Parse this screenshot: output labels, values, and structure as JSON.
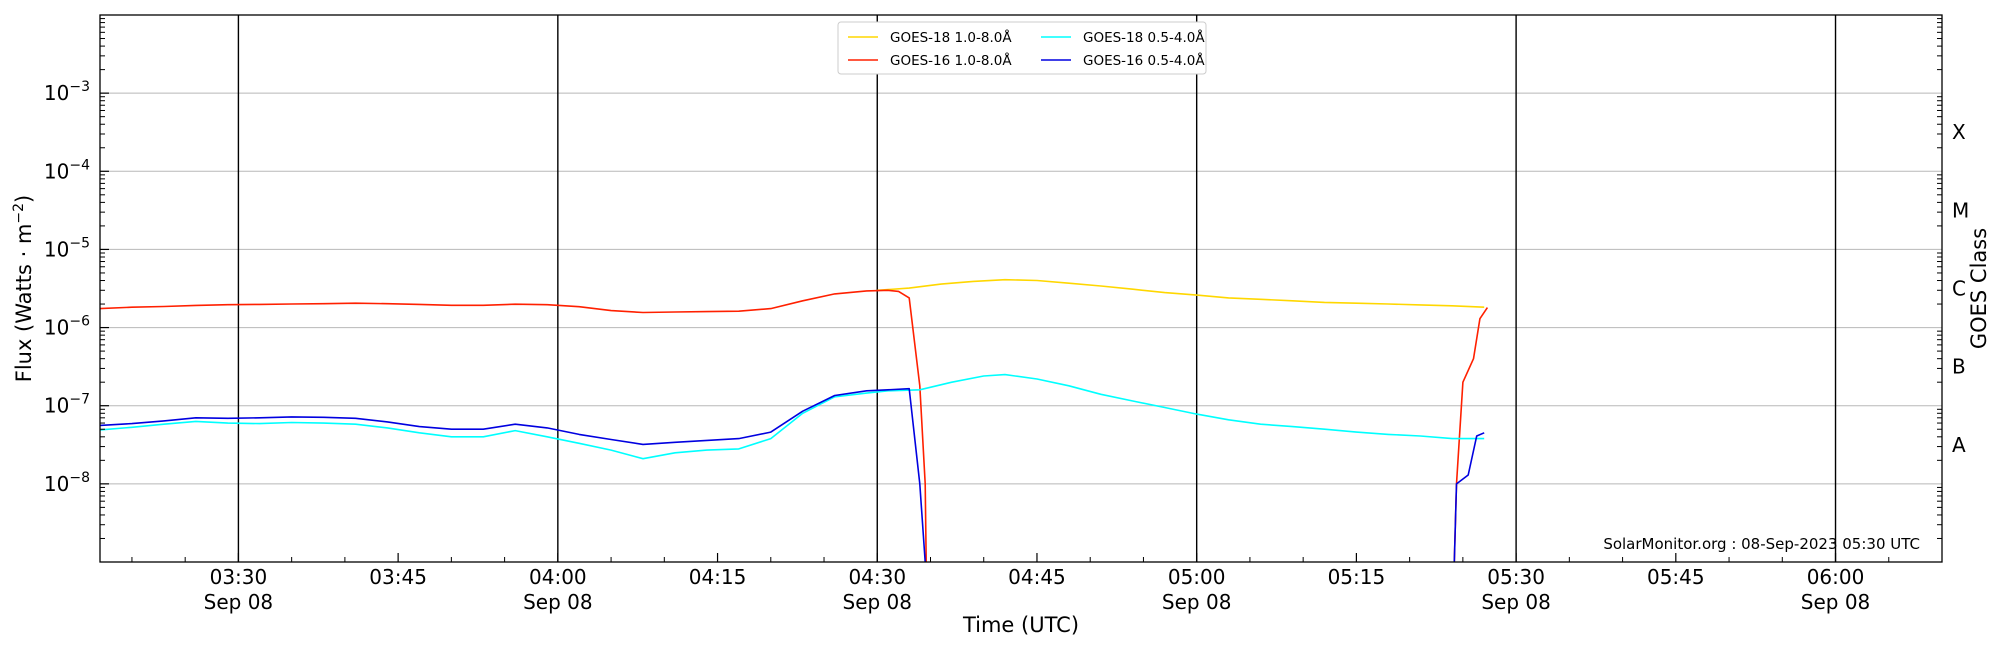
{
  "chart_data": {
    "type": "line",
    "xlabel": "Time (UTC)",
    "ylabel": "Flux (Watts · m",
    "ylabel_sup": "−2",
    "ylabel_close": ")",
    "right_axis_label": "GOES Class",
    "credit": "SolarMonitor.org : 08-Sep-2023 05:30 UTC",
    "x_range": [
      "03:17",
      "06:10"
    ],
    "y_range": [
      1e-09,
      0.01
    ],
    "y_scale": "log",
    "grid": "horizontal at decades, vertical black lines every 30 minutes",
    "legend_position": "top-center",
    "x_ticks": [
      {
        "time": "03:30",
        "label": "03:30",
        "date": "Sep 08",
        "major": true
      },
      {
        "time": "03:45",
        "label": "03:45",
        "date": "",
        "major": false
      },
      {
        "time": "04:00",
        "label": "04:00",
        "date": "Sep 08",
        "major": true
      },
      {
        "time": "04:15",
        "label": "04:15",
        "date": "",
        "major": false
      },
      {
        "time": "04:30",
        "label": "04:30",
        "date": "Sep 08",
        "major": true
      },
      {
        "time": "04:45",
        "label": "04:45",
        "date": "",
        "major": false
      },
      {
        "time": "05:00",
        "label": "05:00",
        "date": "Sep 08",
        "major": true
      },
      {
        "time": "05:15",
        "label": "05:15",
        "date": "",
        "major": false
      },
      {
        "time": "05:30",
        "label": "05:30",
        "date": "Sep 08",
        "major": true
      },
      {
        "time": "05:45",
        "label": "05:45",
        "date": "",
        "major": false
      },
      {
        "time": "06:00",
        "label": "06:00",
        "date": "Sep 08",
        "major": true
      }
    ],
    "y_ticks": [
      {
        "value": 0.001,
        "base": "10",
        "exp": "−3"
      },
      {
        "value": 0.0001,
        "base": "10",
        "exp": "−4"
      },
      {
        "value": 1e-05,
        "base": "10",
        "exp": "−5"
      },
      {
        "value": 1e-06,
        "base": "10",
        "exp": "−6"
      },
      {
        "value": 1e-07,
        "base": "10",
        "exp": "−7"
      },
      {
        "value": 1e-08,
        "base": "10",
        "exp": "−8"
      }
    ],
    "goes_classes": [
      {
        "label": "X",
        "value": 0.000316
      },
      {
        "label": "M",
        "value": 3.16e-05
      },
      {
        "label": "C",
        "value": 3.16e-06
      },
      {
        "label": "B",
        "value": 3.16e-07
      },
      {
        "label": "A",
        "value": 3.16e-08
      }
    ],
    "series": [
      {
        "name": "GOES-18 1.0-8.0Å",
        "color": "#ffd700",
        "points": [
          [
            "04:30",
            3e-06
          ],
          [
            "04:33",
            3.2e-06
          ],
          [
            "04:36",
            3.6e-06
          ],
          [
            "04:39",
            3.9e-06
          ],
          [
            "04:42",
            4.1e-06
          ],
          [
            "04:45",
            4e-06
          ],
          [
            "04:48",
            3.7e-06
          ],
          [
            "04:51",
            3.4e-06
          ],
          [
            "04:54",
            3.1e-06
          ],
          [
            "04:57",
            2.8e-06
          ],
          [
            "05:00",
            2.6e-06
          ],
          [
            "05:03",
            2.4e-06
          ],
          [
            "05:06",
            2.3e-06
          ],
          [
            "05:09",
            2.2e-06
          ],
          [
            "05:12",
            2.1e-06
          ],
          [
            "05:15",
            2.05e-06
          ],
          [
            "05:18",
            2e-06
          ],
          [
            "05:21",
            1.95e-06
          ],
          [
            "05:24",
            1.9e-06
          ],
          [
            "05:27",
            1.82e-06
          ]
        ]
      },
      {
        "name": "GOES-16 1.0-8.0Å",
        "color": "#ff2000",
        "points": [
          [
            "03:17",
            1.75e-06
          ],
          [
            "03:20",
            1.82e-06
          ],
          [
            "03:23",
            1.86e-06
          ],
          [
            "03:26",
            1.92e-06
          ],
          [
            "03:29",
            1.96e-06
          ],
          [
            "03:32",
            1.98e-06
          ],
          [
            "03:35",
            2e-06
          ],
          [
            "03:38",
            2.02e-06
          ],
          [
            "03:41",
            2.05e-06
          ],
          [
            "03:44",
            2.02e-06
          ],
          [
            "03:47",
            1.98e-06
          ],
          [
            "03:50",
            1.93e-06
          ],
          [
            "03:53",
            1.93e-06
          ],
          [
            "03:56",
            1.99e-06
          ],
          [
            "03:59",
            1.96e-06
          ],
          [
            "04:02",
            1.85e-06
          ],
          [
            "04:05",
            1.65e-06
          ],
          [
            "04:08",
            1.56e-06
          ],
          [
            "04:11",
            1.58e-06
          ],
          [
            "04:14",
            1.6e-06
          ],
          [
            "04:17",
            1.62e-06
          ],
          [
            "04:20",
            1.75e-06
          ],
          [
            "04:23",
            2.2e-06
          ],
          [
            "04:26",
            2.7e-06
          ],
          [
            "04:29",
            2.95e-06
          ],
          [
            "04:31",
            3e-06
          ],
          [
            "04:32",
            2.9e-06
          ],
          [
            "04:33",
            2.4e-06
          ],
          [
            "04:34",
            1.8e-07
          ],
          [
            "04:34.5",
            1e-08
          ],
          [
            "04:34.6",
            1e-09
          ]
        ],
        "points_segment_2": [
          [
            "05:24.2",
            1e-09
          ],
          [
            "05:24.4",
            1e-08
          ],
          [
            "05:25",
            2e-07
          ],
          [
            "05:26",
            4e-07
          ],
          [
            "05:26.6",
            1.3e-06
          ],
          [
            "05:27.3",
            1.8e-06
          ]
        ]
      },
      {
        "name": "GOES-18 0.5-4.0Å",
        "color": "#00ffff",
        "points": [
          [
            "03:17",
            4.9e-08
          ],
          [
            "03:20",
            5.3e-08
          ],
          [
            "03:23",
            5.8e-08
          ],
          [
            "03:26",
            6.3e-08
          ],
          [
            "03:29",
            6e-08
          ],
          [
            "03:32",
            5.9e-08
          ],
          [
            "03:35",
            6.1e-08
          ],
          [
            "03:38",
            6e-08
          ],
          [
            "03:41",
            5.8e-08
          ],
          [
            "03:44",
            5.2e-08
          ],
          [
            "03:47",
            4.5e-08
          ],
          [
            "03:50",
            4e-08
          ],
          [
            "03:53",
            4e-08
          ],
          [
            "03:56",
            4.8e-08
          ],
          [
            "03:59",
            4e-08
          ],
          [
            "04:02",
            3.3e-08
          ],
          [
            "04:05",
            2.7e-08
          ],
          [
            "04:08",
            2.1e-08
          ],
          [
            "04:11",
            2.5e-08
          ],
          [
            "04:14",
            2.7e-08
          ],
          [
            "04:17",
            2.8e-08
          ],
          [
            "04:20",
            3.8e-08
          ],
          [
            "04:23",
            8e-08
          ],
          [
            "04:26",
            1.3e-07
          ],
          [
            "04:29",
            1.45e-07
          ],
          [
            "04:31",
            1.55e-07
          ],
          [
            "04:34",
            1.6e-07
          ],
          [
            "04:37",
            2e-07
          ],
          [
            "04:40",
            2.4e-07
          ],
          [
            "04:42",
            2.5e-07
          ],
          [
            "04:45",
            2.2e-07
          ],
          [
            "04:48",
            1.8e-07
          ],
          [
            "04:51",
            1.4e-07
          ],
          [
            "04:54",
            1.15e-07
          ],
          [
            "04:57",
            9.5e-08
          ],
          [
            "05:00",
            7.8e-08
          ],
          [
            "05:03",
            6.6e-08
          ],
          [
            "05:06",
            5.8e-08
          ],
          [
            "05:09",
            5.4e-08
          ],
          [
            "05:12",
            5e-08
          ],
          [
            "05:15",
            4.6e-08
          ],
          [
            "05:18",
            4.3e-08
          ],
          [
            "05:21",
            4.1e-08
          ],
          [
            "05:24",
            3.8e-08
          ],
          [
            "05:27",
            3.8e-08
          ]
        ]
      },
      {
        "name": "GOES-16 0.5-4.0Å",
        "color": "#0000e0",
        "points": [
          [
            "03:17",
            5.6e-08
          ],
          [
            "03:20",
            5.9e-08
          ],
          [
            "03:23",
            6.4e-08
          ],
          [
            "03:26",
            7e-08
          ],
          [
            "03:29",
            6.9e-08
          ],
          [
            "03:32",
            7e-08
          ],
          [
            "03:35",
            7.2e-08
          ],
          [
            "03:38",
            7.1e-08
          ],
          [
            "03:41",
            6.9e-08
          ],
          [
            "03:44",
            6.2e-08
          ],
          [
            "03:47",
            5.4e-08
          ],
          [
            "03:50",
            5e-08
          ],
          [
            "03:53",
            5e-08
          ],
          [
            "03:56",
            5.8e-08
          ],
          [
            "03:59",
            5.2e-08
          ],
          [
            "04:02",
            4.3e-08
          ],
          [
            "04:05",
            3.7e-08
          ],
          [
            "04:08",
            3.2e-08
          ],
          [
            "04:11",
            3.4e-08
          ],
          [
            "04:14",
            3.6e-08
          ],
          [
            "04:17",
            3.8e-08
          ],
          [
            "04:20",
            4.6e-08
          ],
          [
            "04:23",
            8.5e-08
          ],
          [
            "04:26",
            1.35e-07
          ],
          [
            "04:29",
            1.55e-07
          ],
          [
            "04:31",
            1.6e-07
          ],
          [
            "04:33",
            1.65e-07
          ],
          [
            "04:34",
            1e-08
          ],
          [
            "04:34.5",
            1e-09
          ]
        ],
        "points_segment_2": [
          [
            "05:24.2",
            1e-09
          ],
          [
            "05:24.4",
            1e-08
          ],
          [
            "05:25.5",
            1.3e-08
          ],
          [
            "05:26.3",
            4.1e-08
          ],
          [
            "05:27",
            4.5e-08
          ]
        ]
      }
    ]
  }
}
